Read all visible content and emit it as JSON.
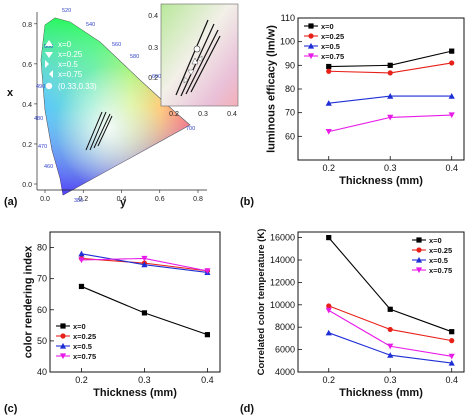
{
  "panel_labels": {
    "a": "(a)",
    "b": "(b)",
    "c": "(c)",
    "d": "(d)"
  },
  "cie": {
    "xlabel": "y",
    "ylabel": "x",
    "xticks": [
      "0.0",
      "0.2",
      "0.4",
      "0.6",
      "0.8"
    ],
    "yticks": [
      "0.0",
      "0.2",
      "0.4",
      "0.6",
      "0.8"
    ],
    "wavelength_labels": [
      "520",
      "540",
      "560",
      "500",
      "580",
      "600",
      "620",
      "700",
      "490",
      "480",
      "470",
      "460",
      "380"
    ],
    "legend": [
      "x=0",
      "x=0.25",
      "x=0.5",
      "x=0.75",
      "(0.33,0.33)"
    ],
    "inset_xticks": [
      "0.2",
      "0.3",
      "0.4"
    ],
    "inset_yticks": [
      "0.4",
      "0.3",
      "0.2"
    ]
  },
  "colors": {
    "x0": "#000000",
    "x025": "#e8201a",
    "x05": "#1f2fd6",
    "x075": "#e81ce8"
  },
  "chart_data": [
    {
      "id": "b",
      "type": "line",
      "xlabel": "Thickness (mm)",
      "ylabel": "luminous efficacy (lm/w)",
      "x": [
        0.2,
        0.3,
        0.4
      ],
      "xlim": [
        0.15,
        0.42
      ],
      "ylim": [
        50,
        110
      ],
      "xticks": [
        "0.2",
        "0.3",
        "0.4"
      ],
      "yticks": [
        "60",
        "70",
        "80",
        "90",
        "100",
        "110"
      ],
      "legend_position": "top-left",
      "series": [
        {
          "name": "x=0",
          "values": [
            89.5,
            90,
            96
          ]
        },
        {
          "name": "x=0.25",
          "values": [
            87.5,
            86.8,
            91
          ]
        },
        {
          "name": "x=0.5",
          "values": [
            74,
            77,
            77
          ]
        },
        {
          "name": "x=0.75",
          "values": [
            62,
            68,
            69
          ]
        }
      ]
    },
    {
      "id": "c",
      "type": "line",
      "xlabel": "Thickness (mm)",
      "ylabel": "color rendering index",
      "x": [
        0.2,
        0.3,
        0.4
      ],
      "xlim": [
        0.15,
        0.42
      ],
      "ylim": [
        40,
        85
      ],
      "xticks": [
        "0.2",
        "0.3",
        "0.4"
      ],
      "yticks": [
        "40",
        "50",
        "60",
        "70",
        "80"
      ],
      "legend_position": "bottom-left",
      "series": [
        {
          "name": "x=0",
          "values": [
            67.5,
            59,
            52
          ]
        },
        {
          "name": "x=0.25",
          "values": [
            76.5,
            75,
            72.5
          ]
        },
        {
          "name": "x=0.5",
          "values": [
            78,
            74.5,
            72
          ]
        },
        {
          "name": "x=0.75",
          "values": [
            76,
            76.5,
            72.5
          ]
        }
      ]
    },
    {
      "id": "d",
      "type": "line",
      "xlabel": "Thickness (mm)",
      "ylabel": "Correlated color temperature (K)",
      "x": [
        0.2,
        0.3,
        0.4
      ],
      "xlim": [
        0.15,
        0.42
      ],
      "ylim": [
        4000,
        16500
      ],
      "xticks": [
        "0.2",
        "0.3",
        "0.4"
      ],
      "yticks": [
        "4000",
        "6000",
        "8000",
        "10000",
        "12000",
        "14000",
        "16000"
      ],
      "legend_position": "top-right",
      "series": [
        {
          "name": "x=0",
          "values": [
            16000,
            9600,
            7600
          ]
        },
        {
          "name": "x=0.25",
          "values": [
            9900,
            7800,
            6800
          ]
        },
        {
          "name": "x=0.5",
          "values": [
            7500,
            5500,
            4800
          ]
        },
        {
          "name": "x=0.75",
          "values": [
            9500,
            6300,
            5400
          ]
        }
      ]
    }
  ]
}
